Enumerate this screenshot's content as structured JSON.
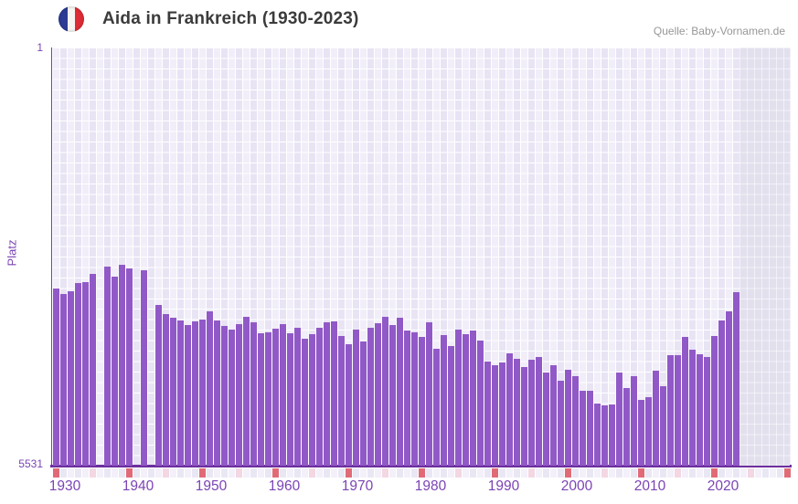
{
  "header": {
    "title": "Aida in Frankreich (1930-2023)",
    "source": "Quelle: Baby-Vornamen.de",
    "flag_icon": "france-flag-circle-icon"
  },
  "axes": {
    "y_label": "Platz",
    "y_top_label": "1",
    "y_bottom_label": "5531",
    "y_scale": "log",
    "x_start_year": 1930,
    "x_end_year": 2030,
    "data_end_year": 2023,
    "x_tick_labels": [
      "1930",
      "1940",
      "1950",
      "1960",
      "1970",
      "1980",
      "1990",
      "2000",
      "2010",
      "2020"
    ]
  },
  "chart_data": {
    "type": "bar",
    "title": "Aida in Frankreich (1930-2023)",
    "xlabel": "",
    "ylabel": "Platz",
    "ylim_rank": [
      1,
      5531
    ],
    "y_axis_inverted": true,
    "grid": true,
    "legend": false,
    "note_missing_years": [
      1936,
      1941,
      1943
    ],
    "note_shaded_region_years": [
      2024,
      2030
    ],
    "years": [
      1930,
      1931,
      1932,
      1933,
      1934,
      1935,
      1936,
      1937,
      1938,
      1939,
      1940,
      1941,
      1942,
      1943,
      1944,
      1945,
      1946,
      1947,
      1948,
      1949,
      1950,
      1951,
      1952,
      1953,
      1954,
      1955,
      1956,
      1957,
      1958,
      1959,
      1960,
      1961,
      1962,
      1963,
      1964,
      1965,
      1966,
      1967,
      1968,
      1969,
      1970,
      1971,
      1972,
      1973,
      1974,
      1975,
      1976,
      1977,
      1978,
      1979,
      1980,
      1981,
      1982,
      1983,
      1984,
      1985,
      1986,
      1987,
      1988,
      1989,
      1990,
      1991,
      1992,
      1993,
      1994,
      1995,
      1996,
      1997,
      1998,
      1999,
      2000,
      2001,
      2002,
      2003,
      2004,
      2005,
      2006,
      2007,
      2008,
      2009,
      2010,
      2011,
      2012,
      2013,
      2014,
      2015,
      2016,
      2017,
      2018,
      2019,
      2020,
      2021,
      2022,
      2023
    ],
    "ranks": [
      144,
      161,
      152,
      128,
      126,
      106,
      null,
      92,
      112,
      88,
      95,
      null,
      99,
      null,
      202,
      243,
      262,
      278,
      305,
      283,
      272,
      230,
      278,
      311,
      336,
      299,
      258,
      288,
      361,
      355,
      329,
      299,
      361,
      323,
      405,
      368,
      323,
      288,
      283,
      383,
      453,
      336,
      429,
      323,
      294,
      258,
      305,
      262,
      342,
      355,
      390,
      288,
      498,
      376,
      471,
      336,
      368,
      342,
      421,
      650,
      698,
      660,
      547,
      612,
      726,
      624,
      590,
      812,
      698,
      961,
      767,
      875,
      1183,
      1183,
      1538,
      1600,
      1570,
      812,
      1117,
      875,
      1429,
      1349,
      782,
      1076,
      568,
      568,
      390,
      507,
      557,
      590,
      383,
      278,
      230,
      155
    ]
  },
  "colors": {
    "bar": "#9159c7",
    "axis_line": "#7a3fae",
    "baseline": "#6d2f9e",
    "plot_bg": "#f1eef9",
    "future_bg": "#e3e0ee",
    "strip_decade": "#e06b77",
    "strip_half_decade": "#f3d7e3",
    "strip_neutral_a": "#f3f0fa",
    "strip_neutral_b": "#eae7f4",
    "tick_text": "#7b44b4",
    "title_text": "#3b3b3b",
    "source_text": "#979797",
    "flag_blue": "#2b3b94",
    "flag_white": "#f5f5f2",
    "flag_red": "#dd2c35"
  }
}
